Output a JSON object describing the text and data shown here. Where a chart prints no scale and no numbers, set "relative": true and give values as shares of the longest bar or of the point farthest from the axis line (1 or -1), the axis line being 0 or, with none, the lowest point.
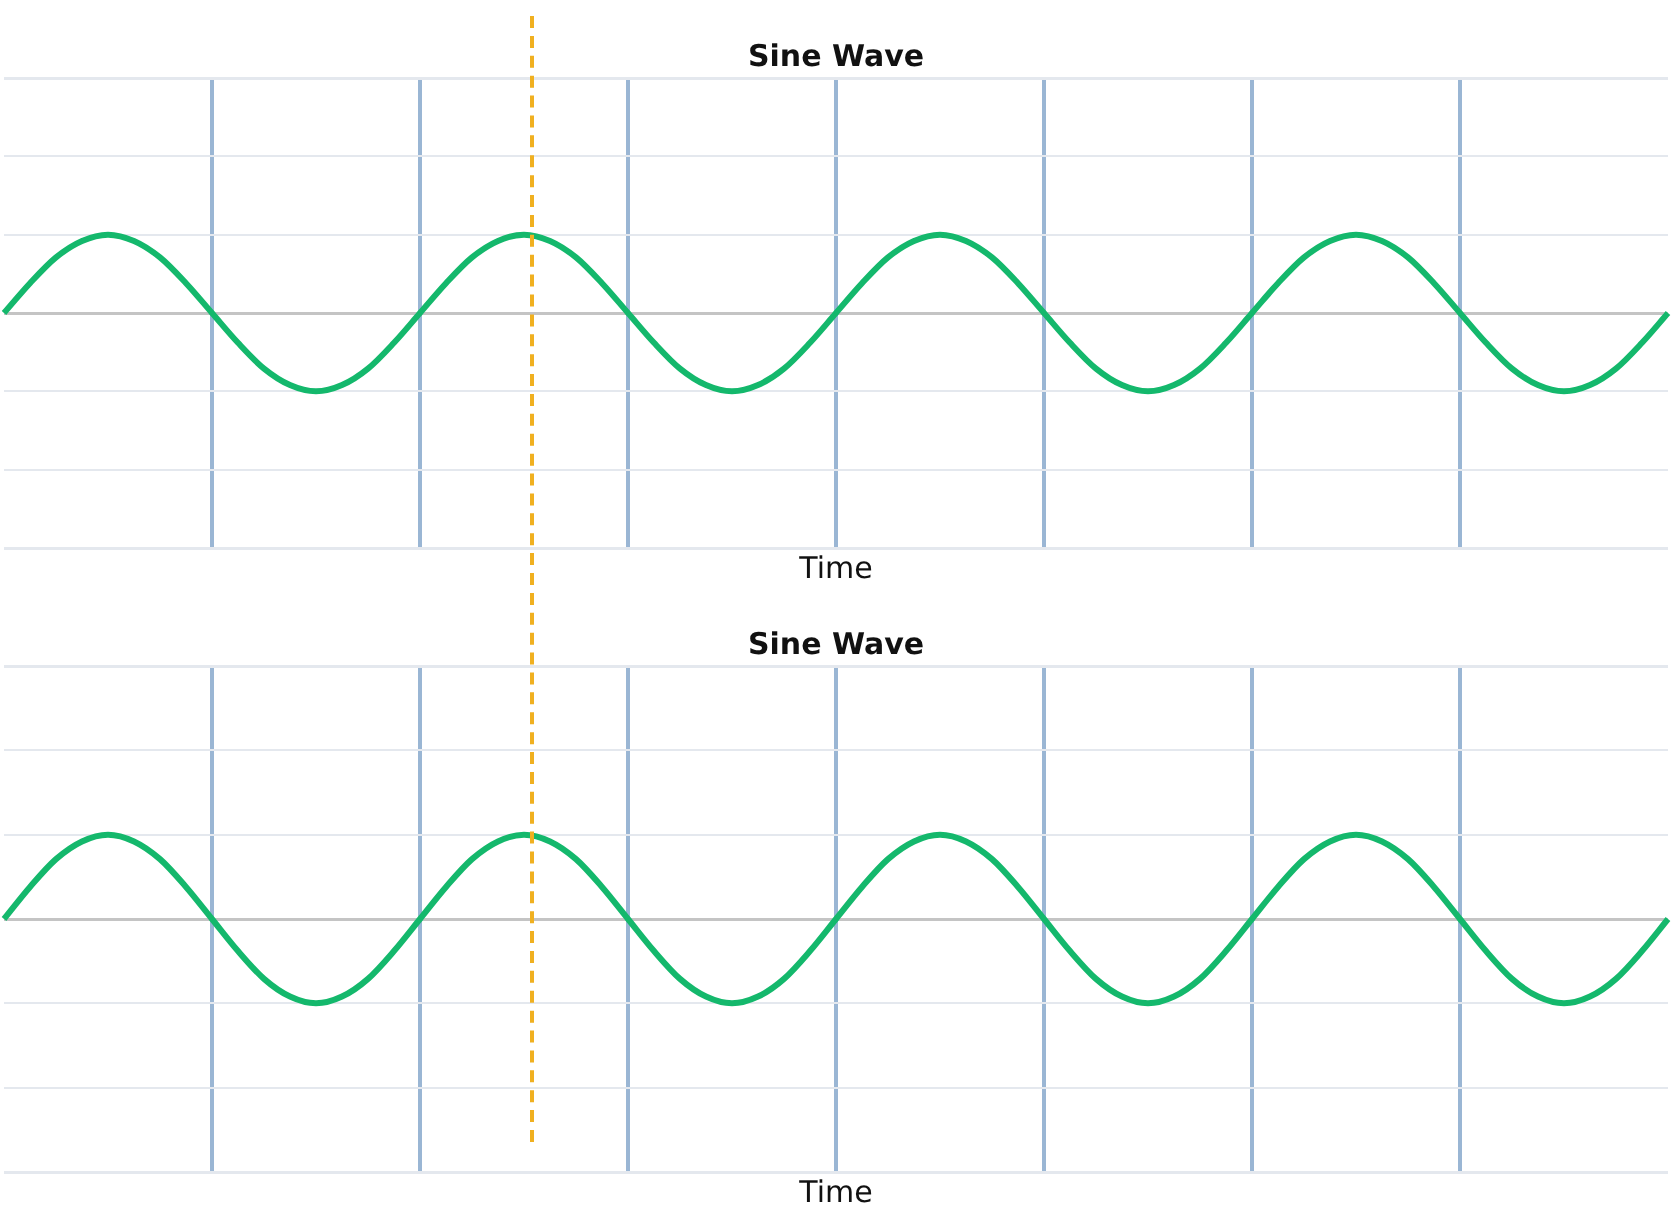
{
  "chart_data": [
    {
      "type": "line",
      "title": "Sine Wave",
      "xlabel": "Time",
      "relative": true,
      "grid": true,
      "categories": [
        null,
        null,
        null,
        null,
        null,
        null,
        null,
        null,
        null,
        null,
        null,
        null,
        null,
        null,
        null,
        null,
        null,
        null,
        null,
        null,
        null,
        null,
        null,
        null,
        null,
        null,
        null,
        null,
        null,
        null,
        null,
        null,
        null,
        null,
        null,
        null,
        null,
        null,
        null,
        null,
        null,
        null,
        null,
        null,
        null,
        null,
        null,
        null,
        null,
        null,
        null,
        null,
        null,
        null,
        null,
        null,
        null,
        null,
        null,
        null,
        null,
        null,
        null,
        null,
        null
      ],
      "series": [
        {
          "color": "#14b86c",
          "values": [
            0,
            0.38,
            0.71,
            0.92,
            1,
            0.92,
            0.71,
            0.38,
            0,
            -0.38,
            -0.71,
            -0.92,
            -1,
            -0.92,
            -0.71,
            -0.38,
            0,
            0.38,
            0.71,
            0.92,
            1,
            0.92,
            0.71,
            0.38,
            0,
            -0.38,
            -0.71,
            -0.92,
            -1,
            -0.92,
            -0.71,
            -0.38,
            0,
            0.38,
            0.71,
            0.92,
            1,
            0.92,
            0.71,
            0.38,
            0,
            -0.38,
            -0.71,
            -0.92,
            -1,
            -0.92,
            -0.71,
            -0.38,
            0,
            0.38,
            0.71,
            0.92,
            1,
            0.92,
            0.71,
            0.38,
            0,
            -0.38,
            -0.71,
            -0.92,
            -1,
            -0.92,
            -0.71,
            -0.38,
            0
          ]
        }
      ]
    },
    {
      "type": "line",
      "title": "Sine Wave",
      "xlabel": "Time",
      "relative": true,
      "grid": true,
      "categories": [
        null,
        null,
        null,
        null,
        null,
        null,
        null,
        null,
        null,
        null,
        null,
        null,
        null,
        null,
        null,
        null,
        null,
        null,
        null,
        null,
        null,
        null,
        null,
        null,
        null,
        null,
        null,
        null,
        null,
        null,
        null,
        null,
        null,
        null,
        null,
        null,
        null,
        null,
        null,
        null,
        null,
        null,
        null,
        null,
        null,
        null,
        null,
        null,
        null,
        null,
        null,
        null,
        null,
        null,
        null,
        null,
        null,
        null,
        null,
        null,
        null,
        null,
        null,
        null,
        null
      ],
      "series": [
        {
          "color": "#14b86c",
          "values": [
            0,
            0.38,
            0.71,
            0.92,
            1,
            0.92,
            0.71,
            0.38,
            0,
            -0.38,
            -0.71,
            -0.92,
            -1,
            -0.92,
            -0.71,
            -0.38,
            0,
            0.38,
            0.71,
            0.92,
            1,
            0.92,
            0.71,
            0.38,
            0,
            -0.38,
            -0.71,
            -0.92,
            -1,
            -0.92,
            -0.71,
            -0.38,
            0,
            0.38,
            0.71,
            0.92,
            1,
            0.92,
            0.71,
            0.38,
            0,
            -0.38,
            -0.71,
            -0.92,
            -1,
            -0.92,
            -0.71,
            -0.38,
            0,
            0.38,
            0.71,
            0.92,
            1,
            0.92,
            0.71,
            0.38,
            0,
            -0.38,
            -0.71,
            -0.92,
            -1,
            -0.92,
            -0.71,
            -0.38,
            0
          ]
        }
      ]
    }
  ]
}
